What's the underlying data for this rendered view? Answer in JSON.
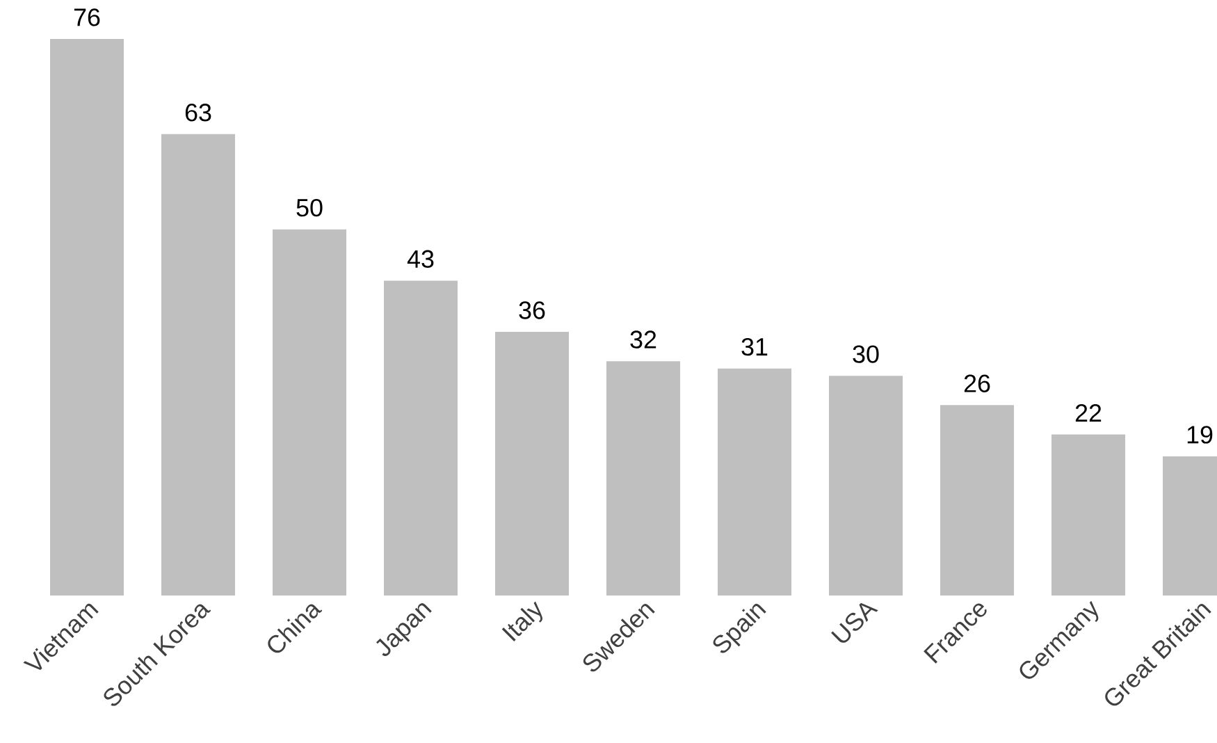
{
  "chart_data": {
    "type": "bar",
    "categories": [
      "Vietnam",
      "South Korea",
      "China",
      "Japan",
      "Italy",
      "Sweden",
      "Spain",
      "USA",
      "France",
      "Germany",
      "Great Britain"
    ],
    "values": [
      76,
      63,
      50,
      43,
      36,
      32,
      31,
      30,
      26,
      22,
      19
    ],
    "color": "#bfbfbf",
    "data_labels": true
  }
}
